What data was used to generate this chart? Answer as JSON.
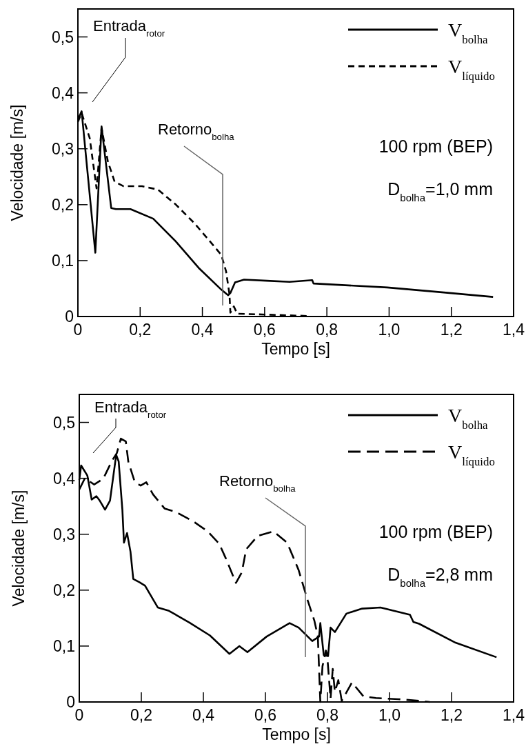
{
  "chart_data": [
    {
      "type": "line",
      "xlabel": "Tempo [s]",
      "ylabel": "Velocidade [m/s]",
      "xlim": [
        0,
        1.4
      ],
      "ylim": [
        0,
        0.55
      ],
      "xticks": [
        0,
        {
          "value": 0.2,
          "label": "0,2"
        },
        {
          "value": 0.4,
          "label": "0,4"
        },
        {
          "value": 0.6,
          "label": "0,6"
        },
        {
          "value": 0.8,
          "label": "0,8"
        },
        {
          "value": 1.0,
          "label": "1,0"
        },
        {
          "value": 1.2,
          "label": "1,2"
        },
        {
          "value": 1.4,
          "label": "1,4"
        }
      ],
      "yticks": [
        0,
        {
          "value": 0.1,
          "label": "0,1"
        },
        {
          "value": 0.2,
          "label": "0,2"
        },
        {
          "value": 0.3,
          "label": "0,3"
        },
        {
          "value": 0.4,
          "label": "0,4"
        },
        {
          "value": 0.5,
          "label": "0,5"
        }
      ],
      "legend": "top right",
      "grid": false,
      "series": [
        {
          "name": "V$_{bolha}$",
          "color": "#000000",
          "line_style": "solid",
          "x": [
            0,
            0.012,
            0.056,
            0.076,
            0.107,
            0.122,
            0.169,
            0.242,
            0.315,
            0.388,
            0.461,
            0.483,
            0.49,
            0.505,
            0.534,
            0.607,
            0.68,
            0.753,
            0.757,
            0.994,
            1.176,
            1.334
          ],
          "values": [
            0.352,
            0.367,
            0.114,
            0.34,
            0.194,
            0.192,
            0.192,
            0.175,
            0.134,
            0.087,
            0.048,
            0.038,
            0.042,
            0.061,
            0.066,
            0.064,
            0.062,
            0.065,
            0.059,
            0.052,
            0.043,
            0.035
          ]
        },
        {
          "name": "V$_{líquido}$",
          "color": "#000000",
          "line_style": "dashed",
          "x": [
            0,
            0.012,
            0.038,
            0.06,
            0.076,
            0.096,
            0.118,
            0.147,
            0.206,
            0.257,
            0.315,
            0.374,
            0.425,
            0.461,
            0.476,
            0.487,
            0.49,
            0.501,
            0.512,
            0.571,
            0.68,
            0.735
          ],
          "values": [
            0.348,
            0.364,
            0.319,
            0.229,
            0.337,
            0.278,
            0.241,
            0.233,
            0.233,
            0.227,
            0.2,
            0.167,
            0.134,
            0.11,
            0.081,
            0.04,
            0.007,
            0.018,
            0.005,
            0.004,
            0.002,
            0.001
          ]
        }
      ],
      "annotations": [
        "Entrada$_{rotor}$",
        "Retorno$_{bolha}$",
        "100 rpm (BEP)",
        "D$_{bolha}$=1,0 mm"
      ]
    },
    {
      "type": "line",
      "xlabel": "Tempo [s]",
      "ylabel": "Velocidade [m/s]",
      "xlim": [
        0,
        1.4
      ],
      "ylim": [
        0,
        0.55
      ],
      "xticks": [
        0,
        {
          "value": 0.2,
          "label": "0,2"
        },
        {
          "value": 0.4,
          "label": "0,4"
        },
        {
          "value": 0.6,
          "label": "0,6"
        },
        {
          "value": 0.8,
          "label": "0,8"
        },
        {
          "value": 1.0,
          "label": "1,0"
        },
        {
          "value": 1.2,
          "label": "1,2"
        },
        {
          "value": 1.4,
          "label": "1,4"
        }
      ],
      "yticks": [
        0,
        {
          "value": 0.1,
          "label": "0,1"
        },
        {
          "value": 0.2,
          "label": "0,2"
        },
        {
          "value": 0.3,
          "label": "0,3"
        },
        {
          "value": 0.4,
          "label": "0,4"
        },
        {
          "value": 0.5,
          "label": "0,5"
        }
      ],
      "legend": "top right",
      "grid": false,
      "series": [
        {
          "name": "V$_{bolha}$",
          "color": "#000000",
          "line_style": "solid",
          "x": [
            0,
            0.006,
            0.026,
            0.04,
            0.055,
            0.066,
            0.083,
            0.099,
            0.119,
            0.127,
            0.139,
            0.144,
            0.154,
            0.165,
            0.174,
            0.194,
            0.212,
            0.253,
            0.289,
            0.355,
            0.421,
            0.484,
            0.516,
            0.542,
            0.604,
            0.678,
            0.707,
            0.751,
            0.773,
            0.777,
            0.788,
            0.802,
            0.81,
            0.824,
            0.861,
            0.912,
            0.971,
            1.066,
            1.077,
            1.095,
            1.213,
            1.345
          ],
          "values": [
            0.397,
            0.423,
            0.405,
            0.362,
            0.368,
            0.36,
            0.344,
            0.36,
            0.442,
            0.43,
            0.343,
            0.285,
            0.302,
            0.269,
            0.22,
            0.214,
            0.208,
            0.169,
            0.163,
            0.142,
            0.119,
            0.086,
            0.1,
            0.089,
            0.117,
            0.141,
            0.133,
            0.109,
            0.117,
            0.141,
            0.084,
            0.082,
            0.133,
            0.125,
            0.158,
            0.167,
            0.169,
            0.156,
            0.143,
            0.14,
            0.106,
            0.08
          ]
        },
        {
          "name": "V$_{líquido}$",
          "color": "#000000",
          "line_style": "dashed",
          "x": [
            0,
            0.018,
            0.048,
            0.077,
            0.106,
            0.121,
            0.134,
            0.15,
            0.158,
            0.179,
            0.198,
            0.216,
            0.238,
            0.275,
            0.311,
            0.37,
            0.414,
            0.451,
            0.473,
            0.505,
            0.524,
            0.538,
            0.575,
            0.626,
            0.67,
            0.707,
            0.736,
            0.758,
            0.769,
            0.777,
            0.784,
            0.795,
            0.799,
            0.81,
            0.817,
            0.824,
            0.835,
            0.846,
            0.879,
            0.916,
            0.956,
            1.029,
            1.095,
            1.13
          ],
          "values": [
            0.38,
            0.4,
            0.389,
            0.399,
            0.432,
            0.445,
            0.471,
            0.466,
            0.43,
            0.393,
            0.387,
            0.393,
            0.371,
            0.346,
            0.34,
            0.322,
            0.305,
            0.283,
            0.256,
            0.213,
            0.232,
            0.273,
            0.297,
            0.305,
            0.285,
            0.236,
            0.182,
            0.145,
            0.117,
            0,
            0.064,
            0.092,
            0.084,
            0.006,
            0.059,
            0.018,
            0.039,
            0.002,
            0.035,
            0.01,
            0.007,
            0.005,
            0.002,
            0
          ]
        }
      ],
      "annotations": [
        "Entrada$_{rotor}$",
        "Retorno$_{bolha}$",
        "100 rpm (BEP)",
        "D$_{bolha}$=2,8 mm"
      ]
    }
  ]
}
